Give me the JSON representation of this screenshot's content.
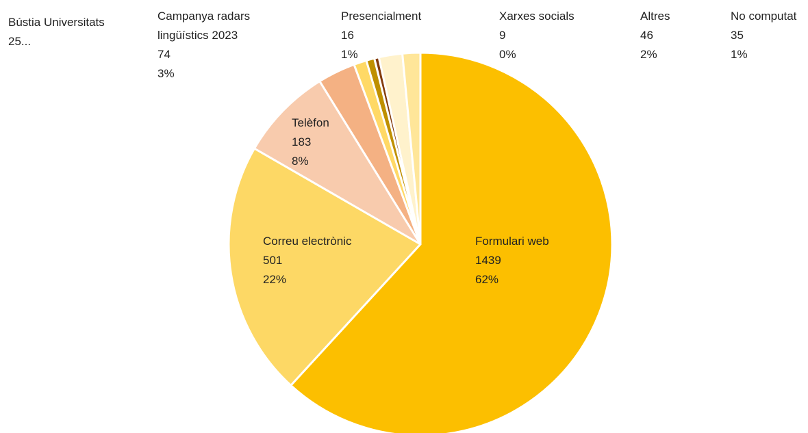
{
  "chart_data": {
    "type": "pie",
    "categories": [
      "Formulari web",
      "Correu electrònic",
      "Telèfon",
      "Campanya radars lingüístics 2023",
      "Bústia Universitats",
      "Presencialment",
      "Xarxes socials",
      "Altres",
      "No computat"
    ],
    "values": [
      1439,
      501,
      183,
      74,
      25,
      16,
      9,
      46,
      35
    ],
    "value_labels": [
      null,
      null,
      null,
      null,
      "25...",
      null,
      null,
      null,
      null
    ],
    "percent_labels": [
      "62%",
      "22%",
      "8%",
      "3%",
      null,
      "1%",
      "0%",
      "2%",
      "1%"
    ],
    "colors": [
      "#FCBF00",
      "#FDD865",
      "#F8CBAD",
      "#F4B183",
      "#FFD966",
      "#BF9000",
      "#843C0C",
      "#FFF2CC",
      "#FFE699"
    ]
  }
}
